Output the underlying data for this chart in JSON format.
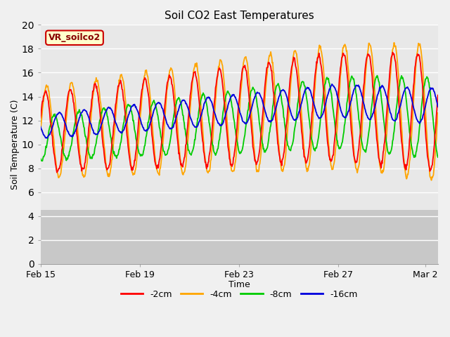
{
  "title": "Soil CO2 East Temperatures",
  "xlabel": "Time",
  "ylabel": "Soil Temperature (C)",
  "ylim": [
    0,
    20
  ],
  "background_color": "#f0f0f0",
  "plot_bg_color": "#e8e8e8",
  "lower_bg_color": "#c8c8c8",
  "lower_bg_threshold": 4.5,
  "grid_color": "#ffffff",
  "legend_label": "VR_soilco2",
  "series": [
    {
      "label": "-2cm",
      "color": "#ff0000"
    },
    {
      "label": "-4cm",
      "color": "#ffa500"
    },
    {
      "label": "-8cm",
      "color": "#00cc00"
    },
    {
      "label": "-16cm",
      "color": "#0000dd"
    }
  ],
  "x_tick_labels": [
    "Feb 15",
    "Feb 19",
    "Feb 23",
    "Feb 27",
    "Mar 2"
  ],
  "x_tick_positions": [
    0,
    4,
    8,
    12,
    15.5
  ],
  "total_days": 16.0
}
